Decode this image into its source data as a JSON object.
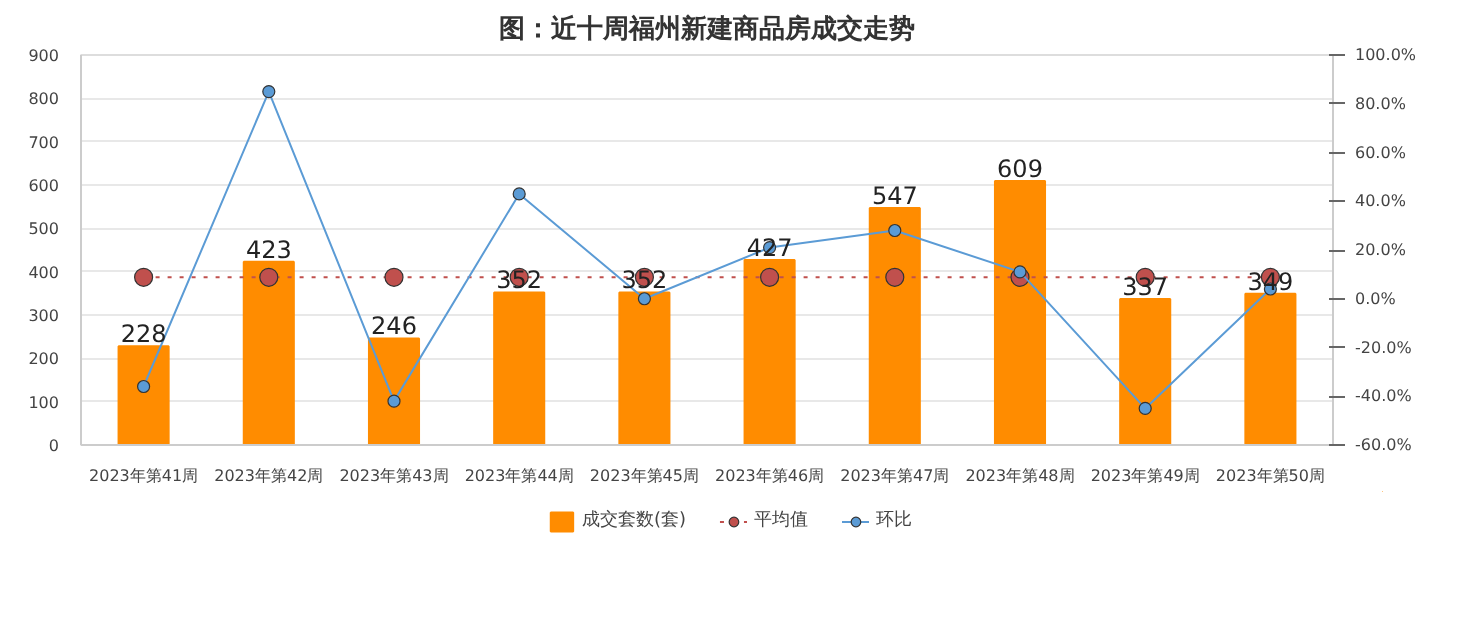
{
  "chart_data": {
    "type": "bar",
    "title": "图：近十周福州新建商品房成交走势",
    "categories": [
      "2023年第41周",
      "2023年第42周",
      "2023年第43周",
      "2023年第44周",
      "2023年第45周",
      "2023年第46周",
      "2023年第47周",
      "2023年第48周",
      "2023年第49周",
      "2023年第50周"
    ],
    "series": [
      {
        "name": "成交套数(套)",
        "color": "#ff8c00",
        "values": [
          228,
          423,
          246,
          352,
          352,
          427,
          547,
          609,
          337,
          349
        ],
        "value_labels": [
          "228",
          "423",
          "246",
          "352",
          "352",
          "427",
          "547",
          "609",
          "337",
          "349"
        ]
      },
      {
        "name": "平均值",
        "type": "line",
        "color": "#c0504d",
        "line_style": "dotted",
        "marker": "circle",
        "values": [
          387,
          387,
          387,
          387,
          387,
          387,
          387,
          387,
          387,
          387
        ]
      },
      {
        "name": "环比",
        "type": "line",
        "axis": "y2",
        "color": "#5b9bd5",
        "line_style": "solid",
        "marker": "circle",
        "values": [
          -36,
          85,
          -42,
          43,
          0,
          21,
          28,
          11,
          -45,
          4
        ]
      }
    ],
    "ylim": [
      0,
      900
    ],
    "yticks": [
      0,
      100,
      200,
      300,
      400,
      500,
      600,
      700,
      800,
      900
    ],
    "y2lim": [
      -60,
      100
    ],
    "y2ticks": [
      {
        "value": -60,
        "label": "-60.0%"
      },
      {
        "value": -40,
        "label": "-40.0%"
      },
      {
        "value": -20,
        "label": "-20.0%"
      },
      {
        "value": 0,
        "label": "0.0%"
      },
      {
        "value": 20,
        "label": "20.0%"
      },
      {
        "value": 40,
        "label": "40.0%"
      },
      {
        "value": 60,
        "label": "60.0%"
      },
      {
        "value": 80,
        "label": "80.0%"
      },
      {
        "value": 100,
        "label": "100.0%"
      }
    ],
    "grid": "y",
    "legend": "bottom"
  }
}
